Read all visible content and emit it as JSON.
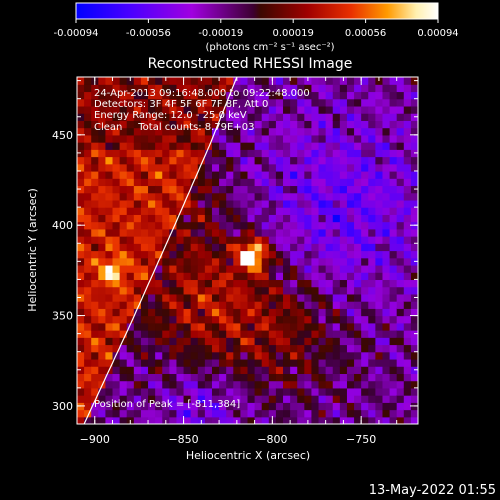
{
  "colorbar": {
    "ticks": [
      "-0.00094",
      "-0.00056",
      "-0.00019",
      "0.00019",
      "0.00056",
      "0.00094"
    ],
    "units": "(photons cm⁻² s⁻¹ asec⁻²)",
    "colors": [
      "#0000ff",
      "#4a00ff",
      "#a000e0",
      "#3c0020",
      "#3c0a00",
      "#a00000",
      "#e83000",
      "#ff9a00",
      "#fff0b0",
      "#ffffff"
    ]
  },
  "chart_data": {
    "type": "heatmap",
    "title": "Reconstructed RHESSI Image",
    "xlabel": "Heliocentric X (arcsec)",
    "ylabel": "Heliocentric Y (arcsec)",
    "xlim": [
      -910,
      -718
    ],
    "ylim": [
      290,
      482
    ],
    "xticks": [
      -900,
      -850,
      -800,
      -750
    ],
    "yticks": [
      300,
      350,
      400,
      450
    ],
    "annotations": [
      "24-Apr-2013 09:16:48.000 to 09:22:48.000",
      "Detectors: 3F 4F 5F 6F 7F 8F, Att 0",
      "Energy Range: 12.0 - 25.0 keV",
      "Clean     Total counts: 8.79E+03"
    ],
    "peak_label": "Position of Peak = [-811,384]",
    "peak": [
      -811,
      384
    ],
    "secondary_source": [
      -890,
      375
    ],
    "limb_curve": [
      [
        -906,
        290
      ],
      [
        -880,
        345
      ],
      [
        -855,
        400
      ],
      [
        -835,
        445
      ],
      [
        -820,
        482
      ]
    ],
    "regions": [
      {
        "name": "left-red-emission",
        "center": [
          -880,
          400
        ],
        "level": 0.45
      },
      {
        "name": "lower-red-emission",
        "center": [
          -835,
          340
        ],
        "level": 0.4
      },
      {
        "name": "right-purple-background",
        "center": [
          -760,
          400
        ],
        "level": -0.3
      }
    ]
  },
  "footer": {
    "date": "13-May-2022 01:55"
  }
}
